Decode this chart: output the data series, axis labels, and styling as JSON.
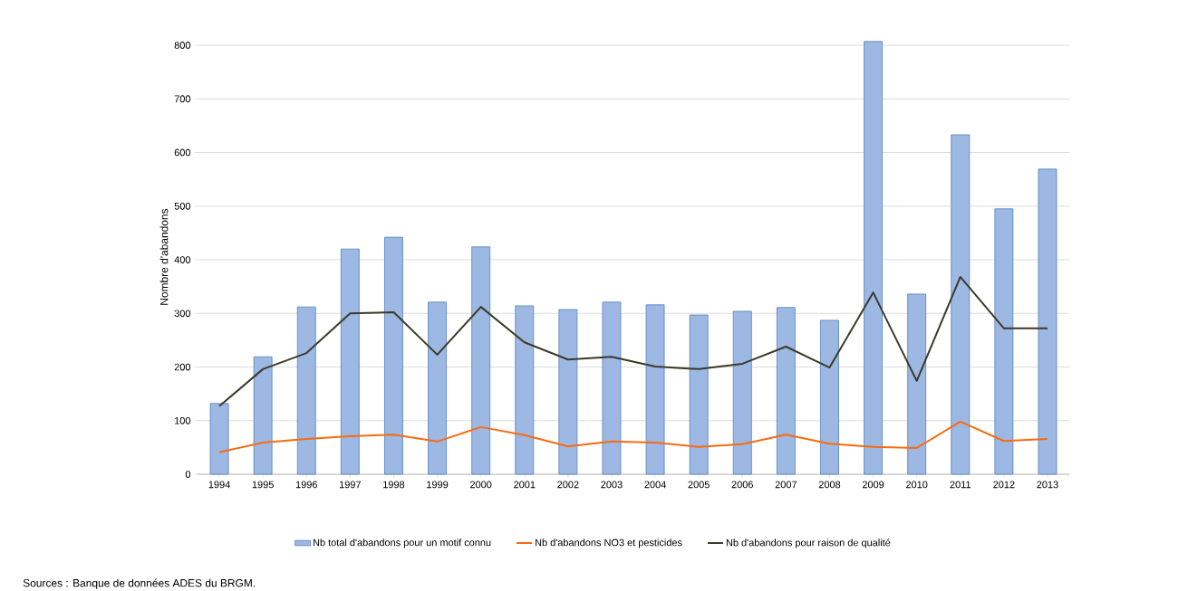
{
  "chart_data": {
    "type": "bar",
    "ylabel": "Nombre d'abandons",
    "categories": [
      "1994",
      "1995",
      "1996",
      "1997",
      "1998",
      "1999",
      "2000",
      "2001",
      "2002",
      "2003",
      "2004",
      "2005",
      "2006",
      "2007",
      "2008",
      "2009",
      "2010",
      "2011",
      "2012",
      "2013"
    ],
    "series": [
      {
        "name": "Nb total d'abandons pour un motif connu",
        "color": "#9db8e3",
        "values": [
          132,
          219,
          312,
          420,
          442,
          321,
          424,
          314,
          307,
          321,
          316,
          297,
          304,
          311,
          287,
          807,
          336,
          633,
          495,
          569
        ]
      },
      {
        "name": "Nb d'abandons NO3 et pesticides",
        "type": "line",
        "color": "#f96b0f",
        "values": [
          41,
          59,
          66,
          71,
          74,
          61,
          88,
          73,
          52,
          61,
          59,
          51,
          56,
          74,
          57,
          51,
          49,
          98,
          62,
          66
        ]
      },
      {
        "name": "Nb d'abandons pour raison de qualité",
        "type": "line",
        "color": "#3c3a28",
        "values": [
          127,
          196,
          226,
          300,
          302,
          223,
          312,
          246,
          214,
          219,
          201,
          196,
          206,
          238,
          199,
          339,
          174,
          368,
          272,
          272
        ]
      }
    ],
    "ylim": [
      0,
      810
    ],
    "yticks": [
      0,
      100,
      200,
      300,
      400,
      500,
      600,
      700,
      800
    ],
    "grid": "y",
    "legend": "bottom",
    "marker": "none",
    "line_style": "solid",
    "annotations": [
      "Sources : Banque de données ADES du BRGM."
    ]
  }
}
